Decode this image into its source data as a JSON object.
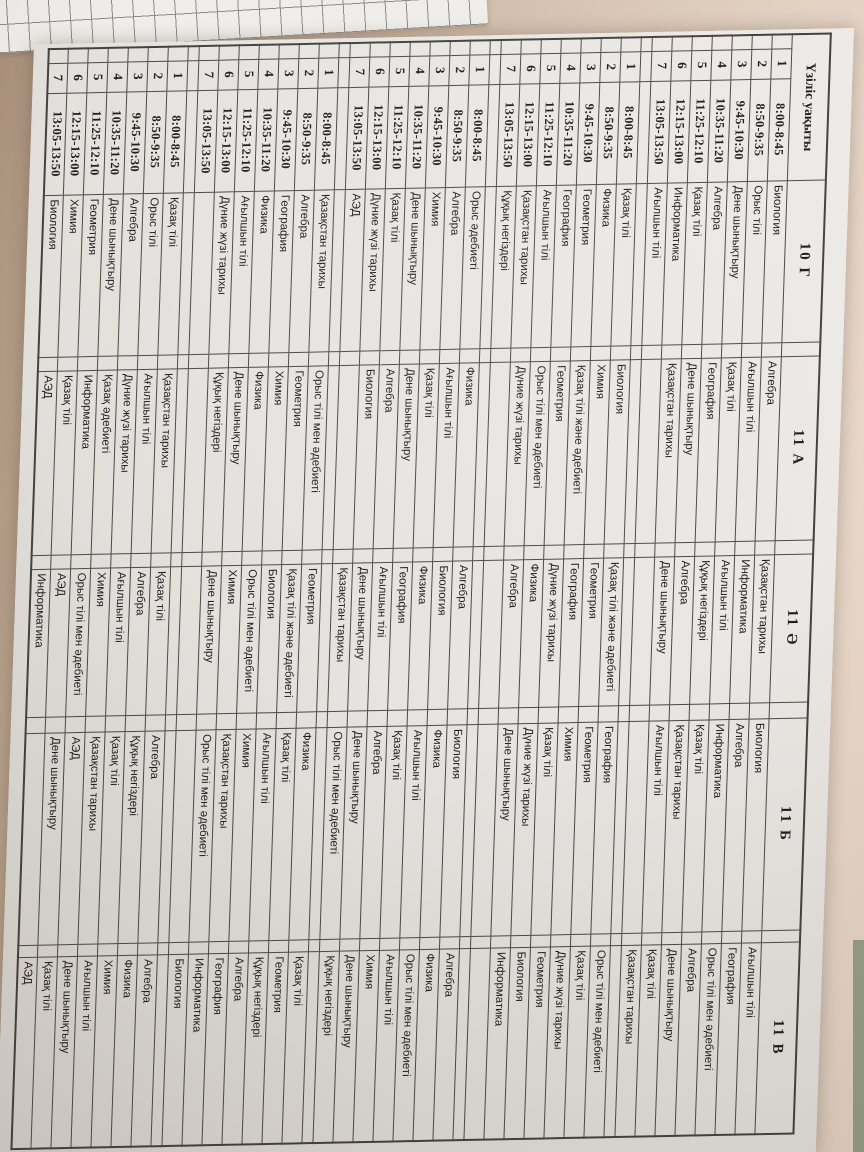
{
  "scene": {
    "desk_color_dark": "#a8907d",
    "desk_color_light": "#ead9cc",
    "edge_object_color": "#99a08b",
    "paper_color": "#eae8e4"
  },
  "timetable": {
    "corner_header": "Үзіліс уақыты",
    "class_headers": [
      "10 Г",
      "11 А",
      "11 Ә",
      "11 Б",
      "11 В"
    ],
    "blocks": [
      {
        "rows": [
          {
            "num": "1",
            "time": "8:00-8:45",
            "subjects": [
              "Биология",
              "Алгебра",
              "Қазақстан тарихы",
              "Биология",
              "Ағылшын тілі"
            ]
          },
          {
            "num": "2",
            "time": "8:50-9:35",
            "subjects": [
              "Орыс тілі",
              "Ағылшын тілі",
              "Информатика",
              "Алгебра",
              "География"
            ]
          },
          {
            "num": "3",
            "time": "9:45-10:30",
            "subjects": [
              "Дене шынықтыру",
              "Қазақ тілі",
              "Ағылшын тілі",
              "Информатика",
              "Орыс тілі мен әдебиеті"
            ]
          },
          {
            "num": "4",
            "time": "10:35-11:20",
            "subjects": [
              "Алгебра",
              "География",
              "Құқық негіздері",
              "Қазақ тілі",
              "Алгебра"
            ]
          },
          {
            "num": "5",
            "time": "11:25-12:10",
            "subjects": [
              "Қазақ тілі",
              "Дене шынықтыру",
              "Алгебра",
              "Қазақстан тарихы",
              "Дене шынықтыру"
            ]
          },
          {
            "num": "6",
            "time": "12:15-13:00",
            "subjects": [
              "Информатика",
              "Қазақстан тарихы",
              "Дене шынықтыру",
              "Ағылшын тілі",
              "Қазақ тілі"
            ]
          },
          {
            "num": "7",
            "time": "13:05-13:50",
            "subjects": [
              "Ағылшын тілі",
              "",
              "",
              "",
              "Қазақстан тарихы"
            ]
          }
        ]
      },
      {
        "rows": [
          {
            "num": "1",
            "time": "8:00-8:45",
            "subjects": [
              "Қазақ тілі",
              "Биология",
              "Қазақ тілі және әдебиеті",
              "География",
              "Орыс тілі мен әдебиеті"
            ]
          },
          {
            "num": "2",
            "time": "8:50-9:35",
            "subjects": [
              "Физика",
              "Химия",
              "Геометрия",
              "Геометрия",
              "Қазақ тілі"
            ]
          },
          {
            "num": "3",
            "time": "9:45-10:30",
            "subjects": [
              "Геометрия",
              "Қазақ тілі және әдебиеті",
              "География",
              "Химия",
              "Дүние жүзі тарихы"
            ]
          },
          {
            "num": "4",
            "time": "10:35-11:20",
            "subjects": [
              "География",
              "Геометрия",
              "Дүние жүзі тарихы",
              "Қазақ тілі",
              "Геометрия"
            ]
          },
          {
            "num": "5",
            "time": "11:25-12:10",
            "subjects": [
              "Ағылшын тілі",
              "Орыс тілі мен әдебиеті",
              "Физика",
              "Дүние жүзі тарихы",
              "Биология"
            ]
          },
          {
            "num": "6",
            "time": "12:15-13:00",
            "subjects": [
              "Қазақстан тарихы",
              "Дүние жүзі тарихы",
              "Алгебра",
              "Дене шынықтыру",
              "Информатика"
            ]
          },
          {
            "num": "7",
            "time": "13:05-13:50",
            "subjects": [
              "Құқық негіздері",
              "",
              "",
              "",
              ""
            ]
          }
        ]
      },
      {
        "rows": [
          {
            "num": "1",
            "time": "8:00-8:45",
            "subjects": [
              "Орыс әдебиеті",
              "Физика",
              "Алгебра",
              "Биология",
              "Алгебра"
            ]
          },
          {
            "num": "2",
            "time": "8:50-9:35",
            "subjects": [
              "Алгебра",
              "Ағылшын тілі",
              "Биология",
              "Физика",
              "Физика"
            ]
          },
          {
            "num": "3",
            "time": "9:45-10:30",
            "subjects": [
              "Химия",
              "Қазақ тілі",
              "Физика",
              "Ағылшын тілі",
              "Орыс тілі мен әдебиеті"
            ]
          },
          {
            "num": "4",
            "time": "10:35-11:20",
            "subjects": [
              "Дене шынықтыру",
              "Дене шынықтыру",
              "География",
              "Қазақ тілі",
              "Ағылшын тілі"
            ]
          },
          {
            "num": "5",
            "time": "11:25-12:10",
            "subjects": [
              "Қазақ тілі",
              "Алгебра",
              "Ағылшын тілі",
              "Алгебра",
              "Химия"
            ]
          },
          {
            "num": "6",
            "time": "12:15-13:00",
            "subjects": [
              "Дүние жүзі тарихы",
              "Биология",
              "Дене шынықтыру",
              "Дене шынықтыру",
              "Дене шынықтыру"
            ]
          },
          {
            "num": "7",
            "time": "13:05-13:50",
            "subjects": [
              "АЭД",
              "",
              "Қазақстан тарихы",
              "Орыс тілі мен әдебиеті",
              "Құқық негіздері"
            ]
          }
        ]
      },
      {
        "rows": [
          {
            "num": "1",
            "time": "8:00-8:45",
            "subjects": [
              "Қазақстан тарихы",
              "Орыс тілі мен әдебиеті",
              "Геометрия",
              "Физика",
              "Қазақ тілі"
            ]
          },
          {
            "num": "2",
            "time": "8:50-9:35",
            "subjects": [
              "Алгебра",
              "Геометрия",
              "Қазақ тілі және әдебиеті",
              "Қазақ тілі",
              "Геометрия"
            ]
          },
          {
            "num": "3",
            "time": "9:45-10:30",
            "subjects": [
              "География",
              "Химия",
              "Биология",
              "Ағылшын тілі",
              "Құқық негіздері"
            ]
          },
          {
            "num": "4",
            "time": "10:35-11:20",
            "subjects": [
              "Физика",
              "Физика",
              "Орыс тілі мен әдебиеті",
              "Химия",
              "Алгебра"
            ]
          },
          {
            "num": "5",
            "time": "11:25-12:10",
            "subjects": [
              "Ағылшын тілі",
              "Дене шынықтыру",
              "Химия",
              "Қазақстан тарихы",
              "География"
            ]
          },
          {
            "num": "6",
            "time": "12:15-13:00",
            "subjects": [
              "Дүние жүзі тарихы",
              "Құқық негіздері",
              "Дене шынықтыру",
              "Орыс тілі мен әдебиеті",
              "Информатика"
            ]
          },
          {
            "num": "7",
            "time": "13:05-13:50",
            "subjects": [
              "",
              "",
              "",
              "",
              "Биология"
            ]
          }
        ]
      },
      {
        "rows": [
          {
            "num": "1",
            "time": "8:00-8:45",
            "subjects": [
              "Қазақ тілі",
              "Қазақстан тарихы",
              "Қазақ тілі",
              "Алгебра",
              "Алгебра"
            ]
          },
          {
            "num": "2",
            "time": "8:50-9:35",
            "subjects": [
              "Орыс тілі",
              "Ағылшын тілі",
              "Алгебра",
              "Құқық негіздері",
              "Физика"
            ]
          },
          {
            "num": "3",
            "time": "9:45-10:30",
            "subjects": [
              "Алгебра",
              "Дүние жүзі тарихы",
              "Ағылшын тілі",
              "Қазақ тілі",
              "Химия"
            ]
          },
          {
            "num": "4",
            "time": "10:35-11:20",
            "subjects": [
              "Дене шынықтыру",
              "Қазақ әдебиеті",
              "Химия",
              "Қазақстан тарихы",
              "Ағылшын тілі"
            ]
          },
          {
            "num": "5",
            "time": "11:25-12:10",
            "subjects": [
              "Геометрия",
              "Информатика",
              "Орыс тілі мен әдебиеті",
              "АЭД",
              "Дене шынықтыру"
            ]
          },
          {
            "num": "6",
            "time": "12:15-13:00",
            "subjects": [
              "Химия",
              "Қазақ тілі",
              "АЭД",
              "Дене шынықтыру",
              "Қазақ тілі"
            ]
          },
          {
            "num": "7",
            "time": "13:05-13:50",
            "subjects": [
              "Биология",
              "АЭД",
              "Информатика",
              "",
              "АЭД"
            ]
          }
        ]
      }
    ]
  }
}
